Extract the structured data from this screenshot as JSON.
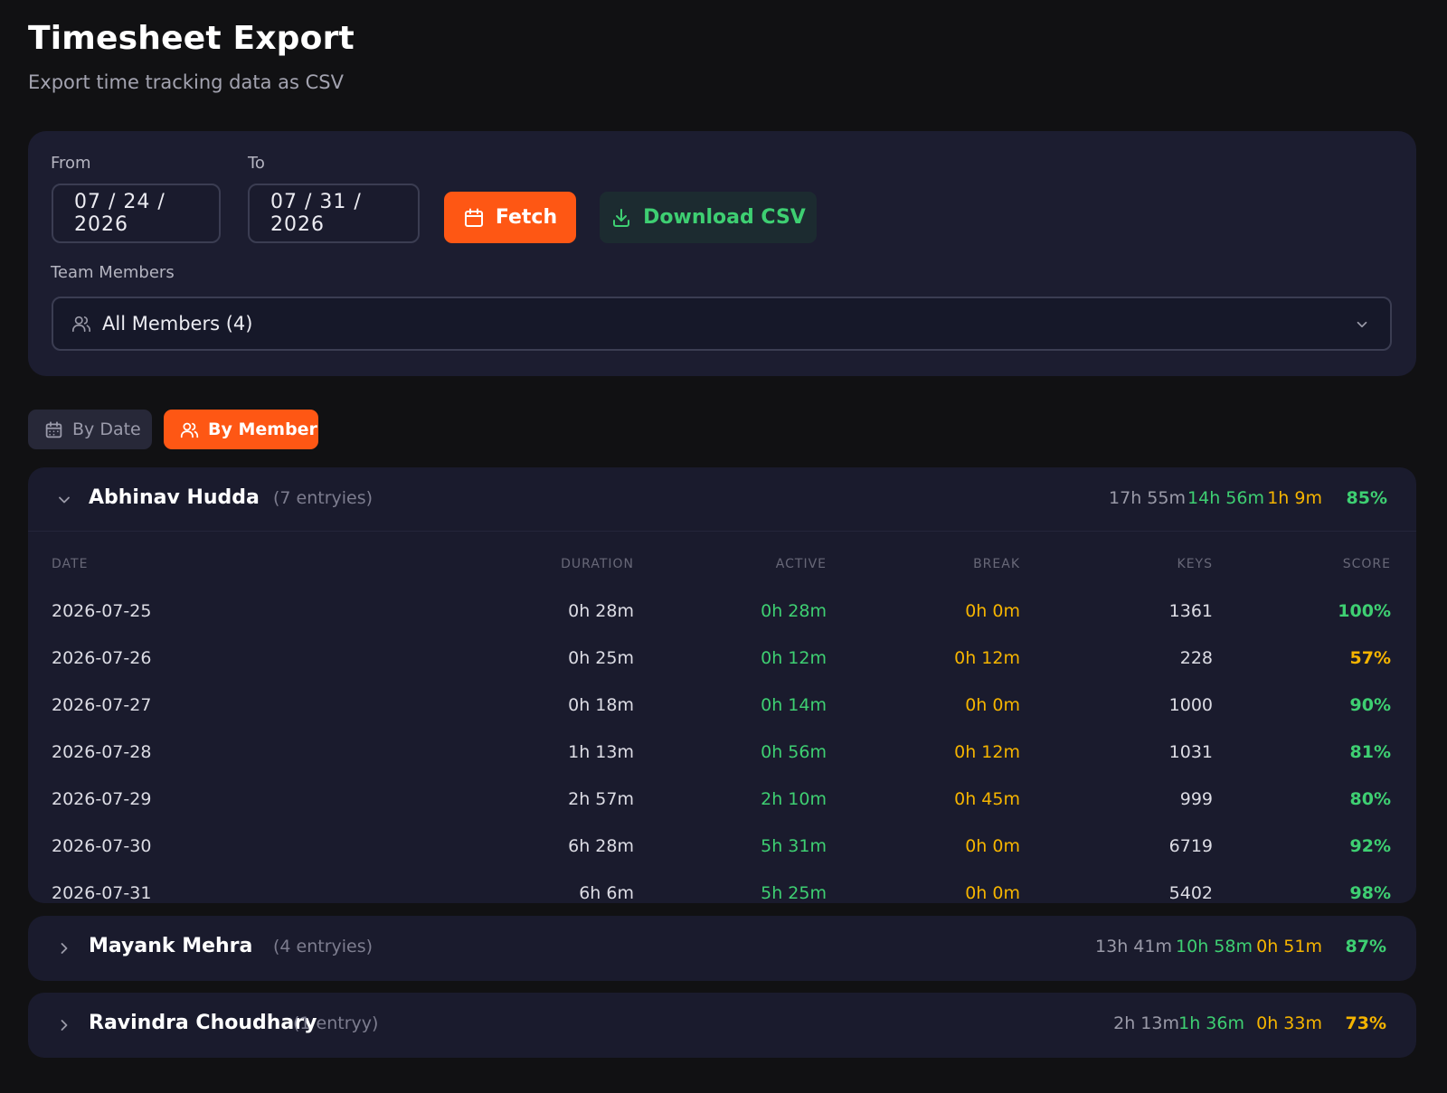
{
  "header": {
    "title": "Timesheet Export",
    "subtitle": "Export time tracking data as CSV"
  },
  "filters": {
    "from_label": "From",
    "from_value": "07 / 24 / 2026",
    "to_label": "To",
    "to_value": "07 / 31 / 2026",
    "fetch_label": "Fetch",
    "download_label": "Download CSV",
    "members_label": "Team Members",
    "members_value": "All Members (4)"
  },
  "view_tabs": {
    "by_date": "By Date",
    "by_member": "By Member",
    "active": "by_member"
  },
  "columns": {
    "date": "DATE",
    "duration": "DURATION",
    "active": "ACTIVE",
    "break": "BREAK",
    "keys": "KEYS",
    "score": "SCORE"
  },
  "groups": [
    {
      "name": "Abhinav Hudda",
      "entries": "(7 entryies)",
      "expanded": true,
      "total_duration": "17h 55m",
      "total_active": "14h 56m",
      "total_break": "1h 9m",
      "score": "85%",
      "score_color": "#3ecf72",
      "rows": [
        {
          "date": "2026-07-25",
          "duration": "0h 28m",
          "active": "0h 28m",
          "break": "0h 0m",
          "keys": "1361",
          "score": "100%",
          "score_color": "#3ecf72"
        },
        {
          "date": "2026-07-26",
          "duration": "0h 25m",
          "active": "0h 12m",
          "break": "0h 12m",
          "keys": "228",
          "score": "57%",
          "score_color": "#f5b400"
        },
        {
          "date": "2026-07-27",
          "duration": "0h 18m",
          "active": "0h 14m",
          "break": "0h 0m",
          "keys": "1000",
          "score": "90%",
          "score_color": "#3ecf72"
        },
        {
          "date": "2026-07-28",
          "duration": "1h 13m",
          "active": "0h 56m",
          "break": "0h 12m",
          "keys": "1031",
          "score": "81%",
          "score_color": "#3ecf72"
        },
        {
          "date": "2026-07-29",
          "duration": "2h 57m",
          "active": "2h 10m",
          "break": "0h 45m",
          "keys": "999",
          "score": "80%",
          "score_color": "#3ecf72"
        },
        {
          "date": "2026-07-30",
          "duration": "6h 28m",
          "active": "5h 31m",
          "break": "0h 0m",
          "keys": "6719",
          "score": "92%",
          "score_color": "#3ecf72"
        },
        {
          "date": "2026-07-31",
          "duration": "6h 6m",
          "active": "5h 25m",
          "break": "0h 0m",
          "keys": "5402",
          "score": "98%",
          "score_color": "#3ecf72"
        }
      ]
    },
    {
      "name": "Mayank Mehra",
      "entries": "(4 entryies)",
      "expanded": false,
      "total_duration": "13h 41m",
      "total_active": "10h 58m",
      "total_break": "0h 51m",
      "score": "87%",
      "score_color": "#3ecf72"
    },
    {
      "name": "Ravindra Choudhary",
      "entries": "(1 entryy)",
      "expanded": false,
      "total_duration": "2h 13m",
      "total_active": "1h 36m",
      "total_break": "0h 33m",
      "score": "73%",
      "score_color": "#f5b400"
    }
  ]
}
